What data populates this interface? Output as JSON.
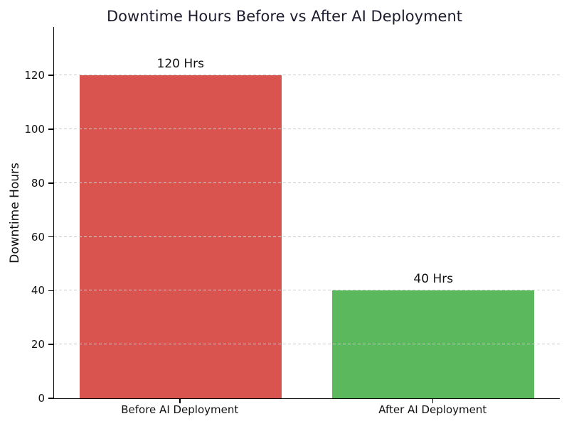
{
  "chart_data": {
    "type": "bar",
    "title": "Downtime Hours Before vs After AI Deployment",
    "categories": [
      "Before AI Deployment",
      "After AI Deployment"
    ],
    "values": [
      120,
      40
    ],
    "value_labels": [
      "120 Hrs",
      "40 Hrs"
    ],
    "bar_colors": [
      "#d9534f",
      "#5cb85c"
    ],
    "xlabel": "",
    "ylabel": "Downtime Hours",
    "ylim": [
      0,
      138
    ],
    "yticks": [
      0,
      20,
      40,
      60,
      80,
      100,
      120
    ],
    "bar_width_fraction": 0.8,
    "grid": "horizontal-dashed-above-bars",
    "legend": "none"
  },
  "colors": {
    "grid": "#cccccc",
    "axis": "#000000",
    "title": "#1c1c2e",
    "text": "#111111",
    "background": "#ffffff"
  }
}
